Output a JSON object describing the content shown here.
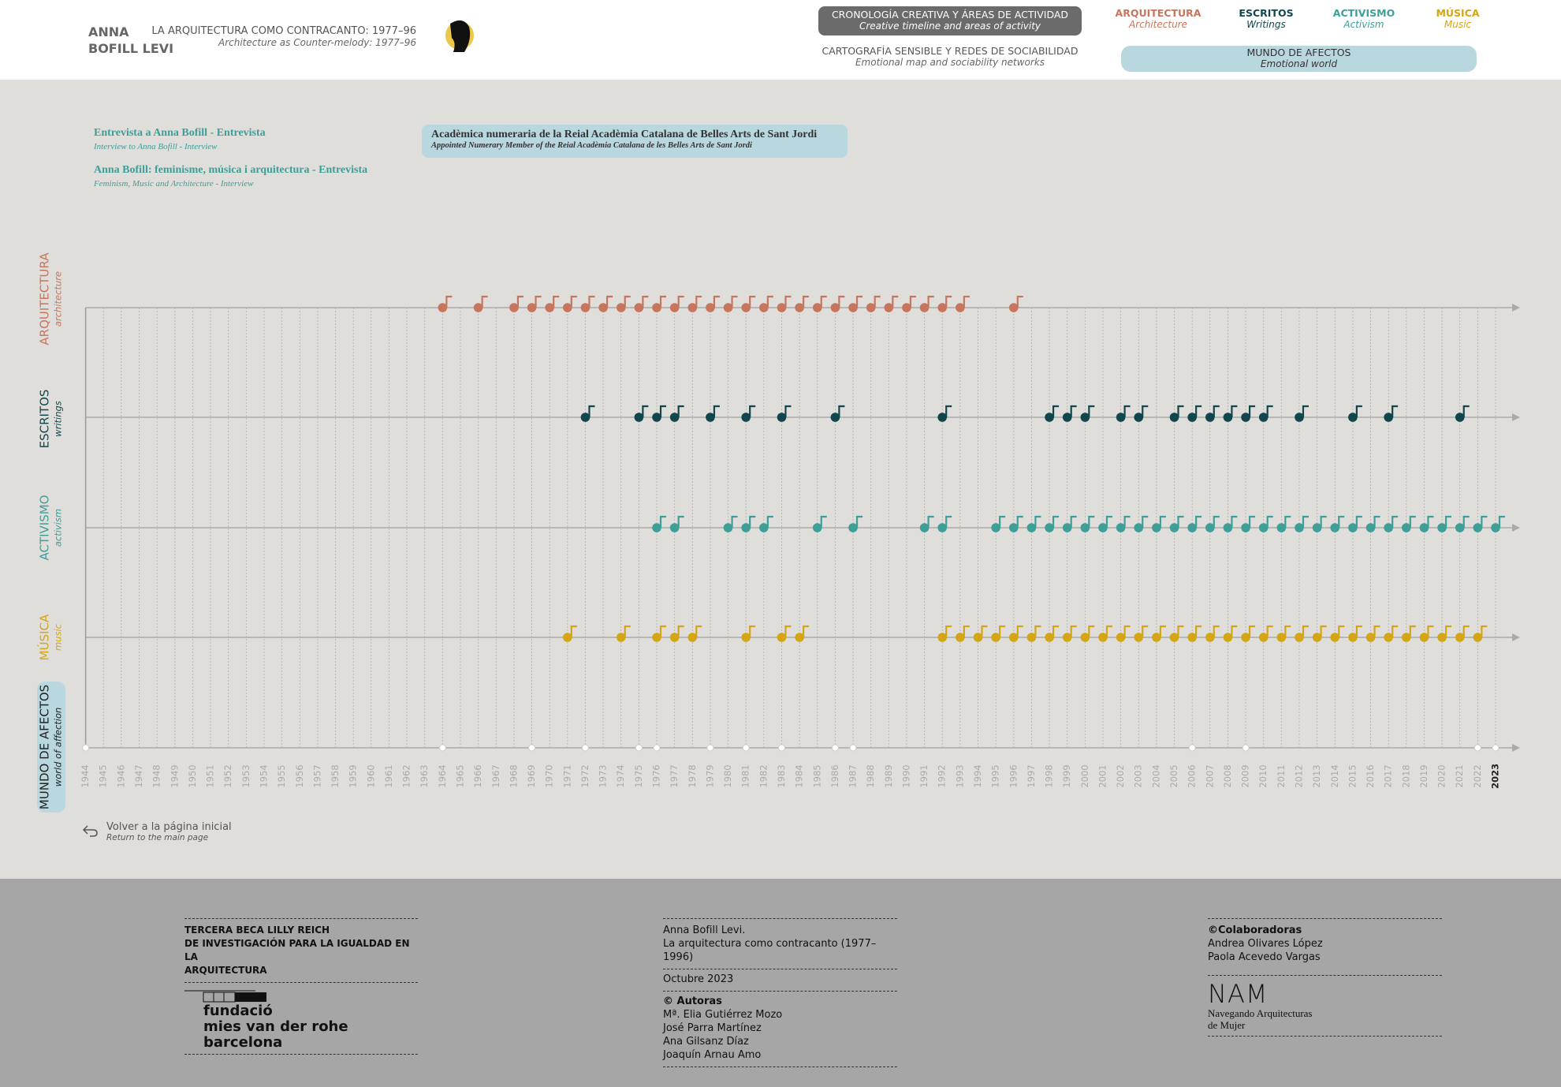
{
  "header": {
    "name": [
      "ANNA",
      "BOFILL LEVI"
    ],
    "title": "LA ARQUITECTURA COMO CONTRACANTO: 1977–96",
    "subtitle": "Architecture as Counter-melody: 1977–96"
  },
  "nav": [
    {
      "title": "CRONOLOGÍA CREATIVA Y ÁREAS DE ACTIVIDAD",
      "subtitle": "Creative timeline and areas of activity"
    },
    {
      "title": "CARTOGRAFÍA SENSIBLE Y REDES DE SOCIABILIDAD",
      "subtitle": "Emotional map and sociability networks"
    },
    {
      "title": "MUNDO DE AFECTOS",
      "subtitle": "Emotional world"
    }
  ],
  "areas": [
    {
      "title": "ARQUITECTURA",
      "subtitle": "Architecture"
    },
    {
      "title": "ESCRITOS",
      "subtitle": "Writings"
    },
    {
      "title": "ACTIVISMO",
      "subtitle": "Activism"
    },
    {
      "title": "MÚSICA",
      "subtitle": "Music"
    }
  ],
  "links": [
    {
      "title": "Entrevista a Anna Bofill - Entrevista",
      "subtitle": "Interview to Anna Bofill - Interview"
    },
    {
      "title": "Anna Bofill: feminisme, música i arquitectura - Entrevista",
      "subtitle": "Feminism, Music and Architecture - Interview"
    }
  ],
  "highlight": {
    "title": "Acadèmica numeraria de la Reial Acadèmia Catalana de Belles Arts de Sant Jordi",
    "subtitle": "Appointed Numerary Member of the Reial Acadèmia Catalana de les Belles Arts de Sant Jordi"
  },
  "timeline": {
    "years": [
      1944,
      1945,
      1946,
      1947,
      1948,
      1949,
      1950,
      1951,
      1952,
      1953,
      1954,
      1955,
      1956,
      1957,
      1958,
      1959,
      1960,
      1961,
      1962,
      1963,
      1964,
      1965,
      1966,
      1967,
      1968,
      1969,
      1970,
      1971,
      1972,
      1973,
      1974,
      1975,
      1976,
      1977,
      1978,
      1979,
      1980,
      1981,
      1982,
      1983,
      1984,
      1985,
      1986,
      1987,
      1988,
      1989,
      1990,
      1991,
      1992,
      1993,
      1994,
      1995,
      1996,
      1997,
      1998,
      1999,
      2000,
      2001,
      2002,
      2003,
      2004,
      2005,
      2006,
      2007,
      2008,
      2009,
      2010,
      2011,
      2012,
      2013,
      2014,
      2015,
      2016,
      2017,
      2018,
      2019,
      2020,
      2021,
      2022,
      2023
    ],
    "rows": [
      {
        "label": "ARQUITECTURA",
        "sublabel": "architecture",
        "color": "#c8755d",
        "events": [
          1964,
          1966,
          1968,
          1969,
          1970,
          1971,
          1972,
          1973,
          1974,
          1975,
          1976,
          1977,
          1978,
          1979,
          1980,
          1981,
          1982,
          1983,
          1984,
          1985,
          1986,
          1987,
          1988,
          1989,
          1990,
          1991,
          1992,
          1993,
          1996
        ]
      },
      {
        "label": "ESCRITOS",
        "sublabel": "writings",
        "color": "#12464d",
        "events": [
          1972,
          1975,
          1976,
          1977,
          1979,
          1981,
          1983,
          1986,
          1992,
          1998,
          1999,
          2000,
          2002,
          2003,
          2005,
          2006,
          2007,
          2008,
          2009,
          2010,
          2012,
          2015,
          2017,
          2021
        ]
      },
      {
        "label": "ACTIVISMO",
        "sublabel": "activism",
        "color": "#3e9e98",
        "events": [
          1976,
          1977,
          1980,
          1981,
          1982,
          1985,
          1987,
          1991,
          1992,
          1995,
          1996,
          1997,
          1998,
          1999,
          2000,
          2001,
          2002,
          2003,
          2004,
          2005,
          2006,
          2007,
          2008,
          2009,
          2010,
          2011,
          2012,
          2013,
          2014,
          2015,
          2016,
          2017,
          2018,
          2019,
          2020,
          2021,
          2022,
          2023
        ]
      },
      {
        "label": "MÚSICA",
        "sublabel": "music",
        "color": "#d4a514",
        "events": [
          1971,
          1974,
          1976,
          1977,
          1978,
          1981,
          1983,
          1984,
          1992,
          1993,
          1994,
          1995,
          1996,
          1997,
          1998,
          1999,
          2000,
          2001,
          2002,
          2003,
          2004,
          2005,
          2006,
          2007,
          2008,
          2009,
          2010,
          2011,
          2012,
          2013,
          2014,
          2015,
          2016,
          2017,
          2018,
          2019,
          2020,
          2021,
          2022
        ]
      },
      {
        "label": "MUNDO DE AFECTOS",
        "sublabel": "world of affection",
        "color": "#ffffff",
        "events": [
          1944,
          1964,
          1969,
          1972,
          1975,
          1976,
          1979,
          1981,
          1983,
          1986,
          1987,
          2006,
          2009,
          2022,
          2023
        ]
      }
    ]
  },
  "back": {
    "title": "Volver a la página inicial",
    "subtitle": "Return to the main page"
  },
  "footer": {
    "grant": [
      "TERCERA BECA LILLY REICH",
      "DE INVESTIGACIÓN PARA LA IGUALDAD EN LA",
      "ARQUITECTURA"
    ],
    "logo": [
      "fundació",
      "mies van der rohe",
      "barcelona"
    ],
    "work": [
      "Anna Bofill Levi.",
      "La arquitectura como contracanto (1977–1996)"
    ],
    "date": "Octubre 2023",
    "authors_title": "© Autoras",
    "authors": [
      "Mª. Elia Gutiérrez Mozo",
      "José Parra Martínez",
      "Ana Gilsanz Díaz",
      "Joaquín Arnau Amo"
    ],
    "collab_title": "©Colaboradoras",
    "collaborators": [
      "Andrea Olivares López",
      "Paola Acevedo Vargas"
    ],
    "nam": "NAM",
    "nam_name": [
      "Navegando Arquitecturas",
      "de Mujer"
    ]
  }
}
